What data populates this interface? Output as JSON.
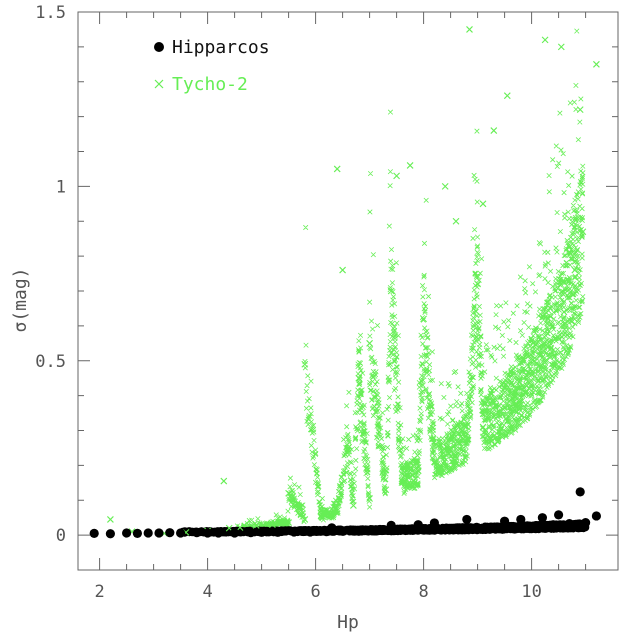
{
  "chart_data": {
    "type": "scatter",
    "title": "",
    "xlabel": "Hp",
    "ylabel": "σ(mag)",
    "xlim": [
      1.6,
      11.6
    ],
    "ylim": [
      -0.1,
      1.5
    ],
    "xticks": [
      "2",
      "4",
      "6",
      "8",
      "10"
    ],
    "yticks": [
      "0",
      "0.5",
      "1",
      "1.5"
    ],
    "grid": false,
    "legend_position": "top-left",
    "series": [
      {
        "name": "Hipparcos",
        "marker": "filled-circle",
        "color": "#000000",
        "points": [
          [
            1.9,
            0.005
          ],
          [
            2.2,
            0.004
          ],
          [
            2.5,
            0.006
          ],
          [
            2.7,
            0.005
          ],
          [
            2.9,
            0.006
          ],
          [
            3.1,
            0.006
          ],
          [
            3.3,
            0.007
          ],
          [
            3.5,
            0.006
          ],
          [
            3.8,
            0.007
          ],
          [
            4.0,
            0.006
          ],
          [
            4.2,
            0.006
          ],
          [
            4.5,
            0.006
          ],
          [
            4.8,
            0.007
          ],
          [
            5.0,
            0.008
          ],
          [
            5.3,
            0.008
          ],
          [
            5.6,
            0.009
          ],
          [
            5.9,
            0.009
          ],
          [
            6.2,
            0.01
          ],
          [
            6.5,
            0.011
          ],
          [
            6.8,
            0.011
          ],
          [
            7.1,
            0.012
          ],
          [
            7.4,
            0.013
          ],
          [
            7.7,
            0.014
          ],
          [
            8.0,
            0.015
          ],
          [
            8.3,
            0.016
          ],
          [
            8.6,
            0.018
          ],
          [
            8.9,
            0.019
          ],
          [
            9.2,
            0.021
          ],
          [
            9.5,
            0.023
          ],
          [
            9.8,
            0.025
          ],
          [
            10.1,
            0.027
          ],
          [
            10.4,
            0.03
          ],
          [
            10.7,
            0.033
          ],
          [
            11.0,
            0.036
          ],
          [
            6.3,
            0.021
          ],
          [
            7.4,
            0.028
          ],
          [
            7.9,
            0.03
          ],
          [
            8.8,
            0.045
          ],
          [
            9.5,
            0.04
          ],
          [
            10.5,
            0.058
          ],
          [
            10.9,
            0.124
          ],
          [
            11.2,
            0.055
          ],
          [
            9.8,
            0.045
          ],
          [
            10.2,
            0.05
          ],
          [
            8.2,
            0.035
          ]
        ]
      },
      {
        "name": "Tycho-2",
        "marker": "cross",
        "color": "#66ee55",
        "points": [
          [
            2.2,
            0.045
          ],
          [
            2.6,
            0.01
          ],
          [
            3.2,
            0.005
          ],
          [
            3.6,
            0.008
          ],
          [
            4.0,
            0.012
          ],
          [
            4.3,
            0.155
          ],
          [
            4.4,
            0.02
          ],
          [
            4.6,
            0.022
          ],
          [
            4.9,
            0.028
          ],
          [
            5.2,
            0.03
          ],
          [
            5.5,
            0.036
          ],
          [
            5.8,
            0.045
          ],
          [
            6.1,
            0.055
          ],
          [
            6.4,
            0.07
          ],
          [
            6.7,
            0.085
          ],
          [
            7.0,
            0.105
          ],
          [
            7.3,
            0.13
          ],
          [
            7.6,
            0.155
          ],
          [
            7.9,
            0.185
          ],
          [
            8.2,
            0.21
          ],
          [
            8.5,
            0.245
          ],
          [
            8.8,
            0.275
          ],
          [
            9.1,
            0.31
          ],
          [
            9.4,
            0.355
          ],
          [
            9.7,
            0.4
          ],
          [
            10.0,
            0.46
          ],
          [
            10.3,
            0.54
          ],
          [
            10.6,
            0.64
          ],
          [
            10.8,
            0.76
          ],
          [
            10.95,
            0.87
          ],
          [
            5.8,
            0.49
          ],
          [
            6.4,
            1.05
          ],
          [
            6.5,
            0.76
          ],
          [
            7.5,
            1.03
          ],
          [
            7.75,
            1.06
          ],
          [
            8.85,
            1.45
          ],
          [
            9.3,
            1.16
          ],
          [
            9.55,
            1.26
          ],
          [
            10.25,
            1.42
          ],
          [
            10.55,
            1.4
          ],
          [
            11.2,
            1.35
          ],
          [
            10.9,
            1.22
          ],
          [
            8.4,
            1.0
          ],
          [
            8.6,
            0.9
          ],
          [
            9.1,
            0.95
          ],
          [
            7.4,
            0.7
          ],
          [
            7.0,
            0.55
          ],
          [
            6.8,
            0.45
          ],
          [
            6.6,
            0.25
          ],
          [
            5.5,
            0.12
          ],
          [
            9.0,
            0.72
          ],
          [
            8.0,
            0.62
          ]
        ]
      }
    ]
  }
}
